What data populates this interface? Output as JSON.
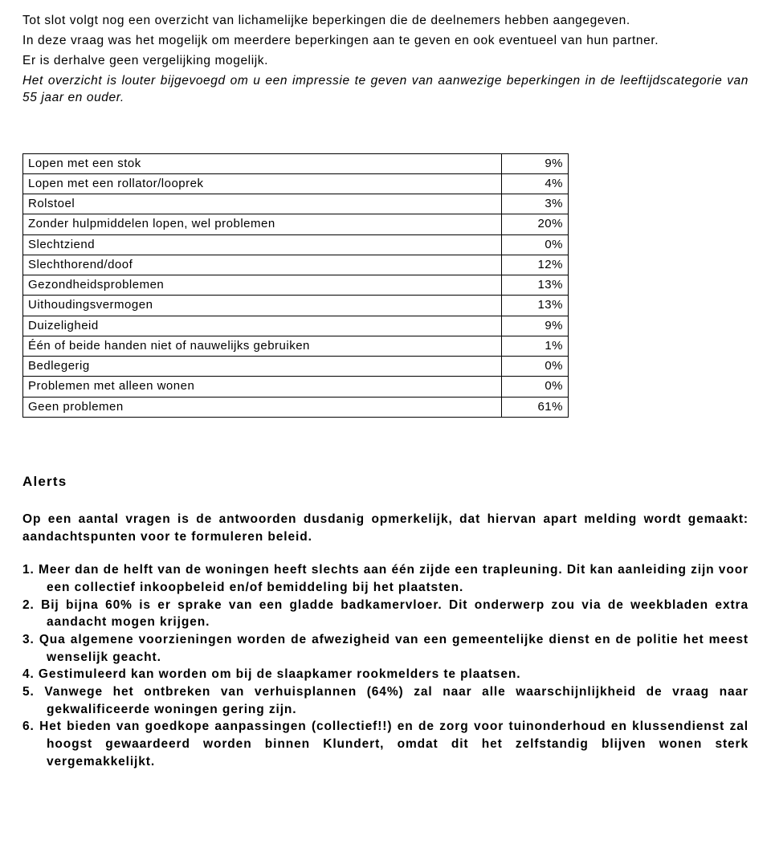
{
  "intro": {
    "p1": "Tot slot volgt nog een overzicht van lichamelijke beperkingen die de deelnemers hebben aangegeven.",
    "p2": "In deze vraag was het mogelijk om meerdere beperkingen aan te geven en ook eventueel van hun partner.",
    "p3": "Er is derhalve geen vergelijking mogelijk.",
    "p4": "Het overzicht is louter bijgevoegd om u een impressie te geven van aanwezige beperkingen in de leeftijdscategorie van 55 jaar en ouder."
  },
  "table": {
    "rows": [
      {
        "label": "Lopen met een stok",
        "value": "9%"
      },
      {
        "label": "Lopen met een rollator/looprek",
        "value": "4%"
      },
      {
        "label": "Rolstoel",
        "value": "3%"
      },
      {
        "label": "Zonder hulpmiddelen lopen, wel problemen",
        "value": "20%"
      },
      {
        "label": "Slechtziend",
        "value": "0%"
      },
      {
        "label": "Slechthorend/doof",
        "value": "12%"
      },
      {
        "label": "Gezondheidsproblemen",
        "value": "13%"
      },
      {
        "label": "Uithoudingsvermogen",
        "value": "13%"
      },
      {
        "label": "Duizeligheid",
        "value": "9%"
      },
      {
        "label": "Één of beide handen niet of nauwelijks gebruiken",
        "value": "1%"
      },
      {
        "label": "Bedlegerig",
        "value": "0%"
      },
      {
        "label": "Problemen met alleen wonen",
        "value": "0%"
      },
      {
        "label": "Geen problemen",
        "value": "61%"
      }
    ]
  },
  "alerts": {
    "heading": "Alerts",
    "intro": "Op een aantal vragen is de antwoorden dusdanig opmerkelijk, dat hiervan apart melding wordt gemaakt: aandachtspunten voor te formuleren beleid.",
    "items": [
      "1. Meer dan de helft van de woningen heeft slechts aan één zijde een trapleuning. Dit kan aanleiding zijn voor een collectief inkoopbeleid en/of bemiddeling bij het plaatsten.",
      "2. Bij bijna 60% is er sprake van een gladde badkamervloer. Dit onderwerp zou via de weekbladen extra aandacht mogen krijgen.",
      "3. Qua algemene voorzieningen worden de afwezigheid van een gemeentelijke dienst en de politie het meest wenselijk geacht.",
      "4. Gestimuleerd kan worden om bij de slaapkamer rookmelders te plaatsen.",
      "5. Vanwege het ontbreken van verhuisplannen (64%) zal naar alle waarschijnlijkheid de vraag naar gekwalificeerde woningen gering zijn.",
      "6. Het bieden van goedkope aanpassingen (collectief!!) en de zorg voor tuinonderhoud en klussendienst zal hoogst gewaardeerd worden binnen Klundert, omdat dit het zelfstandig blijven wonen sterk vergemakkelijkt."
    ]
  }
}
